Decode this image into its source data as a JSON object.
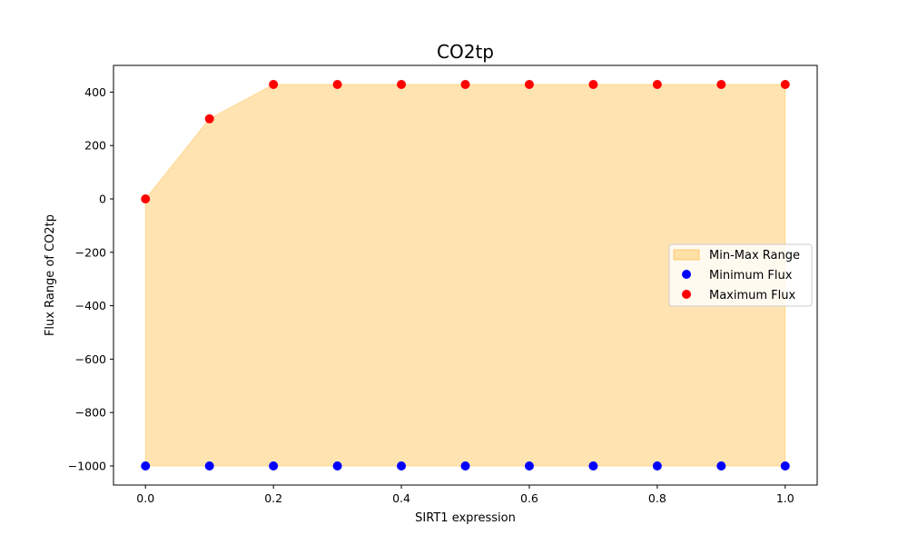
{
  "chart_data": {
    "type": "scatter",
    "title": "CO2tp",
    "xlabel": "SIRT1 expression",
    "ylabel": "Flux Range of CO2tp",
    "xlim": [
      -0.05,
      1.05
    ],
    "ylim": [
      -1071.5,
      500
    ],
    "x_ticks": [
      0.0,
      0.2,
      0.4,
      0.6,
      0.8,
      1.0
    ],
    "x_tick_labels": [
      "0.0",
      "0.2",
      "0.4",
      "0.6",
      "0.8",
      "1.0"
    ],
    "y_ticks": [
      -1000,
      -800,
      -600,
      -400,
      -200,
      0,
      200,
      400
    ],
    "y_tick_labels": [
      "−1000",
      "−800",
      "−600",
      "−400",
      "−200",
      "0",
      "200",
      "400"
    ],
    "grid": false,
    "legend_placement": "center-right",
    "x": [
      0.0,
      0.1,
      0.2,
      0.3,
      0.4,
      0.5,
      0.6,
      0.7,
      0.8,
      0.9,
      1.0
    ],
    "range_fill": {
      "name": "Min-Max Range",
      "color": "#ffa500",
      "alpha": 0.3
    },
    "series": [
      {
        "name": "Minimum Flux",
        "color": "#0000ff",
        "values": [
          -1000,
          -1000,
          -1000,
          -1000,
          -1000,
          -1000,
          -1000,
          -1000,
          -1000,
          -1000,
          -1000
        ]
      },
      {
        "name": "Maximum Flux",
        "color": "#ff0000",
        "values": [
          0,
          300,
          428.6,
          428.6,
          428.6,
          428.6,
          428.6,
          428.6,
          428.6,
          428.6,
          428.6
        ]
      }
    ]
  }
}
